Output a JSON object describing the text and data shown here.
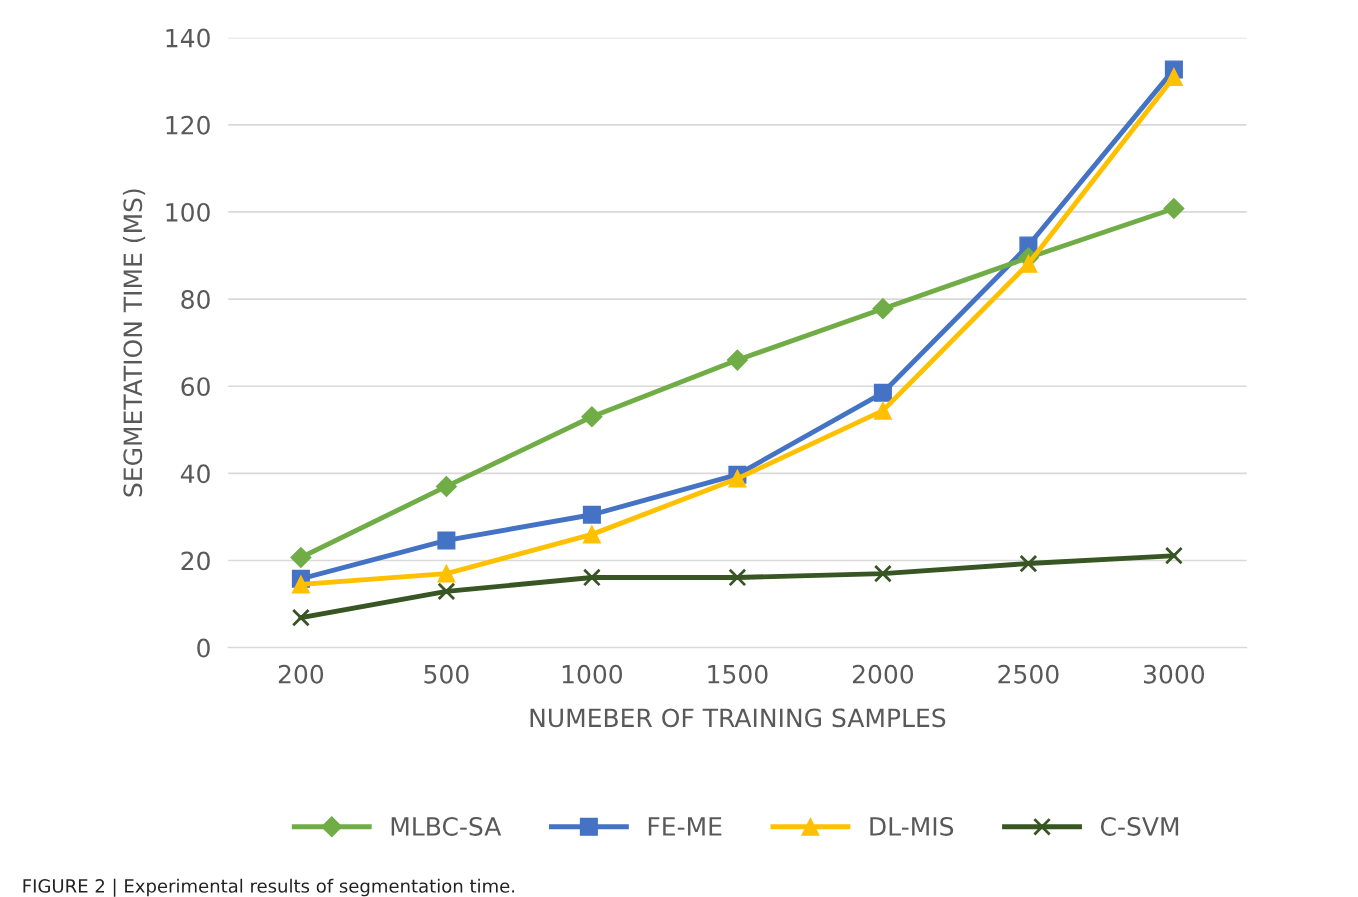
{
  "chart_data": {
    "type": "line",
    "xlabel": "NUMEBER OF TRAINING SAMPLES",
    "ylabel": "SEGMETATION TIME (MS)",
    "categories": [
      "200",
      "500",
      "1000",
      "1500",
      "2000",
      "2500",
      "3000"
    ],
    "series": [
      {
        "name": "MLBC-SA",
        "color": "#70ad47",
        "marker": "diamond",
        "values": [
          20.7,
          37,
          53,
          66,
          77.8,
          89.5,
          100.8
        ]
      },
      {
        "name": "FE-ME",
        "color": "#4472c4",
        "marker": "square",
        "values": [
          15.8,
          24.6,
          30.5,
          39.7,
          58.5,
          92.3,
          132.7
        ]
      },
      {
        "name": "DL-MIS",
        "color": "#ffc000",
        "marker": "triangle",
        "values": [
          14.5,
          17,
          26,
          38.8,
          54.4,
          88.1,
          131
        ]
      },
      {
        "name": "C-SVM",
        "color": "#375623",
        "marker": "cross",
        "values": [
          6.9,
          12.9,
          16.1,
          16.1,
          17,
          19.3,
          21.1
        ]
      }
    ],
    "ylim": [
      0,
      140
    ],
    "yticks": [
      0,
      20,
      40,
      60,
      80,
      100,
      120,
      140
    ],
    "grid": "y",
    "legend": "bottom",
    "line_style": "solid",
    "annotations": [
      "FIGURE 2 | Experimental results of segmentation time."
    ]
  }
}
